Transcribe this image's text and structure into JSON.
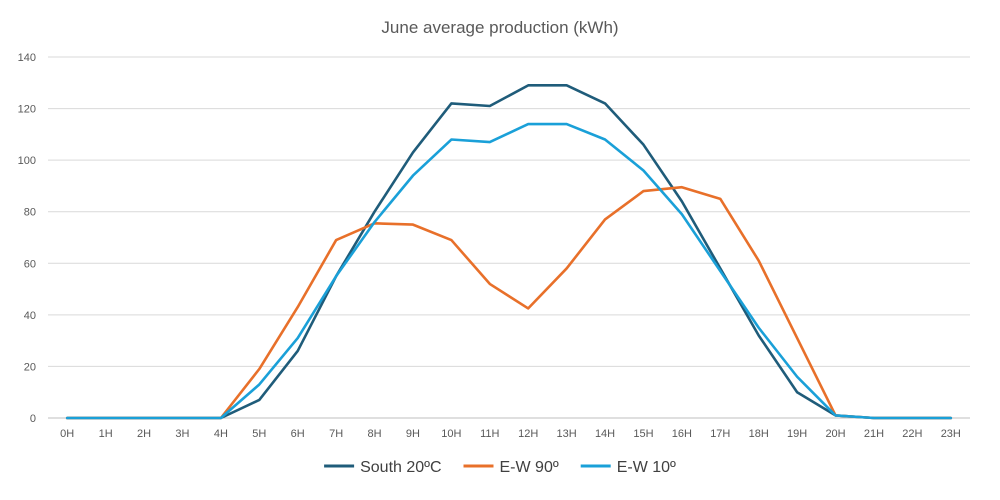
{
  "chart_data": {
    "type": "line",
    "title": "June average production (kWh)",
    "xlabel": "",
    "ylabel": "",
    "categories": [
      "0H",
      "1H",
      "2H",
      "3H",
      "4H",
      "5H",
      "6H",
      "7H",
      "8H",
      "9H",
      "10H",
      "11H",
      "12H",
      "13H",
      "14H",
      "15H",
      "16H",
      "17H",
      "18H",
      "19H",
      "20H",
      "21H",
      "22H",
      "23H"
    ],
    "ylim": [
      0,
      140
    ],
    "yticks": [
      0,
      20,
      40,
      60,
      80,
      100,
      120,
      140
    ],
    "grid": true,
    "legend_position": "bottom",
    "series": [
      {
        "name": "South 20ºC",
        "color": "#1F5C7A",
        "values": [
          0,
          0,
          0,
          0,
          0,
          7,
          26,
          55,
          80,
          103,
          122,
          121,
          129,
          129,
          122,
          106,
          84,
          58,
          32,
          10,
          1,
          0,
          0,
          0
        ]
      },
      {
        "name": "E-W 90º",
        "color": "#E8702A",
        "values": [
          0,
          0,
          0,
          0,
          0,
          19,
          43,
          69,
          75.5,
          75,
          69,
          52,
          42.5,
          58,
          77,
          88,
          89.5,
          85,
          61,
          31,
          1,
          0,
          0,
          0
        ]
      },
      {
        "name": "E-W 10º",
        "color": "#1AA0D8",
        "values": [
          0,
          0,
          0,
          0,
          0,
          13,
          31,
          55,
          76,
          94,
          108,
          107,
          114,
          114,
          108,
          96,
          79,
          57,
          35,
          16,
          1,
          0,
          0,
          0
        ]
      }
    ]
  }
}
